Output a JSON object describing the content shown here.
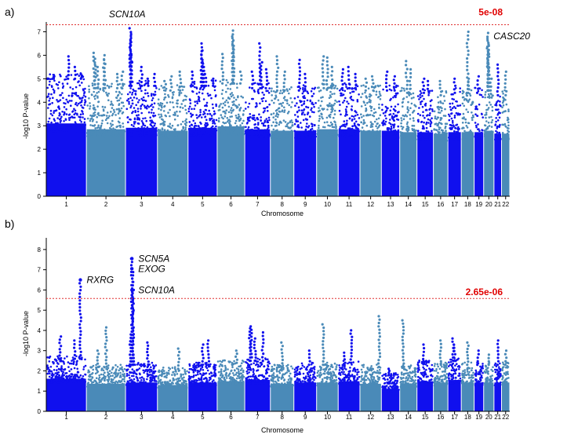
{
  "colors": {
    "dark": "#1010ee",
    "light": "#4a8ab8",
    "threshold": "#e03030",
    "threshold_text": "#e00000"
  },
  "chart_data": [
    {
      "type": "scatter",
      "panel": "a)",
      "xlabel": "Chromosome",
      "ylabel": "-log10 P-value",
      "ylim": [
        0,
        7.35
      ],
      "yticks": [
        0,
        1,
        2,
        3,
        4,
        5,
        6,
        7
      ],
      "categories": [
        "1",
        "2",
        "3",
        "4",
        "5",
        "6",
        "7",
        "8",
        "9",
        "10",
        "11",
        "12",
        "13",
        "14",
        "15",
        "16",
        "17",
        "18",
        "19",
        "20",
        "21",
        "22"
      ],
      "threshold": {
        "value": 7.3,
        "label": "5e-08"
      },
      "annotations": [
        {
          "label": "SCN10A",
          "chrom": "3",
          "y": 7.15
        },
        {
          "label": "CASC20",
          "chrom": "20",
          "y": 6.95
        }
      ],
      "series": [
        {
          "chrom": "1",
          "base": 5.0,
          "peaks": [
            [
              0.05,
              5.0
            ],
            [
              0.18,
              5.1
            ],
            [
              0.55,
              5.95
            ],
            [
              0.72,
              5.5
            ],
            [
              0.88,
              5.2
            ]
          ]
        },
        {
          "chrom": "2",
          "base": 4.6,
          "peaks": [
            [
              0.2,
              6.1
            ],
            [
              0.22,
              5.85
            ],
            [
              0.3,
              5.5
            ],
            [
              0.45,
              6.0
            ],
            [
              0.47,
              5.8
            ],
            [
              0.8,
              5.2
            ],
            [
              0.92,
              5.3
            ]
          ]
        },
        {
          "chrom": "3",
          "base": 4.7,
          "peaks": [
            [
              0.15,
              7.15
            ],
            [
              0.16,
              6.9
            ],
            [
              0.17,
              6.6
            ],
            [
              0.18,
              6.0
            ],
            [
              0.19,
              5.7
            ],
            [
              0.5,
              5.5
            ],
            [
              0.7,
              5.0
            ],
            [
              0.9,
              5.2
            ]
          ]
        },
        {
          "chrom": "4",
          "base": 4.5,
          "peaks": [
            [
              0.25,
              4.9
            ],
            [
              0.45,
              5.1
            ],
            [
              0.75,
              5.3
            ]
          ]
        },
        {
          "chrom": "5",
          "base": 4.7,
          "peaks": [
            [
              0.45,
              6.5
            ],
            [
              0.47,
              6.2
            ],
            [
              0.5,
              5.8
            ],
            [
              0.55,
              5.5
            ],
            [
              0.6,
              5.2
            ],
            [
              0.15,
              5.3
            ],
            [
              0.85,
              5.0
            ]
          ]
        },
        {
          "chrom": "6",
          "base": 4.8,
          "peaks": [
            [
              0.2,
              6.05
            ],
            [
              0.55,
              7.05
            ],
            [
              0.57,
              6.8
            ],
            [
              0.6,
              6.4
            ],
            [
              0.85,
              5.3
            ]
          ]
        },
        {
          "chrom": "7",
          "base": 4.6,
          "peaks": [
            [
              0.3,
              5.3
            ],
            [
              0.6,
              6.5
            ],
            [
              0.65,
              5.7
            ],
            [
              0.85,
              5.4
            ]
          ]
        },
        {
          "chrom": "8",
          "base": 4.5,
          "peaks": [
            [
              0.3,
              5.95
            ],
            [
              0.6,
              5.3
            ]
          ]
        },
        {
          "chrom": "9",
          "base": 4.5,
          "peaks": [
            [
              0.25,
              5.8
            ],
            [
              0.5,
              5.2
            ]
          ]
        },
        {
          "chrom": "10",
          "base": 4.6,
          "peaks": [
            [
              0.3,
              5.95
            ],
            [
              0.5,
              5.9
            ],
            [
              0.7,
              5.5
            ]
          ]
        },
        {
          "chrom": "11",
          "base": 4.6,
          "peaks": [
            [
              0.2,
              5.4
            ],
            [
              0.5,
              5.5
            ],
            [
              0.8,
              5.2
            ]
          ]
        },
        {
          "chrom": "12",
          "base": 4.5,
          "peaks": [
            [
              0.3,
              5.0
            ],
            [
              0.6,
              5.1
            ]
          ]
        },
        {
          "chrom": "13",
          "base": 4.5,
          "peaks": [
            [
              0.3,
              5.3
            ],
            [
              0.7,
              5.1
            ]
          ]
        },
        {
          "chrom": "14",
          "base": 4.4,
          "peaks": [
            [
              0.4,
              5.75
            ],
            [
              0.6,
              5.4
            ]
          ]
        },
        {
          "chrom": "15",
          "base": 4.4,
          "peaks": [
            [
              0.4,
              5.0
            ],
            [
              0.7,
              4.9
            ]
          ]
        },
        {
          "chrom": "16",
          "base": 4.3,
          "peaks": [
            [
              0.5,
              4.9
            ]
          ]
        },
        {
          "chrom": "17",
          "base": 4.4,
          "peaks": [
            [
              0.5,
              5.0
            ]
          ]
        },
        {
          "chrom": "18",
          "base": 4.4,
          "peaks": [
            [
              0.5,
              7.0
            ],
            [
              0.55,
              5.0
            ]
          ]
        },
        {
          "chrom": "19",
          "base": 4.4,
          "peaks": [
            [
              0.4,
              5.1
            ]
          ]
        },
        {
          "chrom": "20",
          "base": 4.5,
          "peaks": [
            [
              0.4,
              6.95
            ],
            [
              0.42,
              6.7
            ],
            [
              0.44,
              6.4
            ],
            [
              0.46,
              6.1
            ],
            [
              0.48,
              5.8
            ],
            [
              0.5,
              5.5
            ],
            [
              0.7,
              5.0
            ]
          ]
        },
        {
          "chrom": "21",
          "base": 4.3,
          "peaks": [
            [
              0.5,
              5.6
            ]
          ]
        },
        {
          "chrom": "22",
          "base": 4.3,
          "peaks": [
            [
              0.5,
              5.3
            ]
          ]
        }
      ]
    },
    {
      "type": "scatter",
      "panel": "b)",
      "xlabel": "Chromosome",
      "ylabel": "-log10 P-value",
      "ylim": [
        0,
        8.5
      ],
      "yticks": [
        0,
        1,
        2,
        3,
        4,
        5,
        6,
        7,
        8
      ],
      "categories": [
        "1",
        "2",
        "3",
        "4",
        "5",
        "6",
        "7",
        "8",
        "9",
        "10",
        "11",
        "12",
        "13",
        "14",
        "15",
        "16",
        "17",
        "18",
        "19",
        "20",
        "21",
        "22"
      ],
      "threshold": {
        "value": 5.58,
        "label": "2.65e-06"
      },
      "annotations": [
        {
          "label": "RXRG",
          "chrom": "1",
          "y": 6.5,
          "pos": 0.85
        },
        {
          "label": "SCN5A",
          "chrom": "3",
          "y": 7.55,
          "pos": 0.2
        },
        {
          "label": "EXOG",
          "chrom": "3",
          "y": 7.05,
          "pos": 0.2
        },
        {
          "label": "SCN10A",
          "chrom": "3",
          "y": 6.0,
          "pos": 0.2
        }
      ],
      "series": [
        {
          "chrom": "1",
          "base": 2.6,
          "peaks": [
            [
              0.35,
              3.7
            ],
            [
              0.7,
              3.5
            ],
            [
              0.85,
              6.5
            ]
          ]
        },
        {
          "chrom": "2",
          "base": 2.2,
          "peaks": [
            [
              0.5,
              4.15
            ],
            [
              0.3,
              3.0
            ]
          ]
        },
        {
          "chrom": "3",
          "base": 2.3,
          "peaks": [
            [
              0.2,
              7.55
            ],
            [
              0.22,
              7.05
            ],
            [
              0.24,
              6.0
            ],
            [
              0.15,
              3.8
            ],
            [
              0.7,
              3.4
            ]
          ]
        },
        {
          "chrom": "4",
          "base": 2.1,
          "peaks": [
            [
              0.7,
              3.1
            ]
          ]
        },
        {
          "chrom": "5",
          "base": 2.3,
          "peaks": [
            [
              0.5,
              3.3
            ],
            [
              0.7,
              3.5
            ]
          ]
        },
        {
          "chrom": "6",
          "base": 2.4,
          "peaks": [
            [
              0.7,
              3.0
            ]
          ]
        },
        {
          "chrom": "7",
          "base": 2.5,
          "peaks": [
            [
              0.2,
              4.1
            ],
            [
              0.25,
              4.2
            ],
            [
              0.4,
              3.6
            ],
            [
              0.7,
              3.9
            ]
          ]
        },
        {
          "chrom": "8",
          "base": 2.2,
          "peaks": [
            [
              0.5,
              3.4
            ]
          ]
        },
        {
          "chrom": "9",
          "base": 2.3,
          "peaks": [
            [
              0.7,
              3.0
            ]
          ]
        },
        {
          "chrom": "10",
          "base": 2.3,
          "peaks": [
            [
              0.3,
              4.3
            ]
          ]
        },
        {
          "chrom": "11",
          "base": 2.4,
          "peaks": [
            [
              0.6,
              4.0
            ],
            [
              0.3,
              2.9
            ]
          ]
        },
        {
          "chrom": "12",
          "base": 2.2,
          "peaks": [
            [
              0.9,
              4.7
            ]
          ]
        },
        {
          "chrom": "13",
          "base": 1.8,
          "peaks": [
            [
              0.4,
              2.1
            ]
          ]
        },
        {
          "chrom": "14",
          "base": 2.2,
          "peaks": [
            [
              0.2,
              4.5
            ]
          ]
        },
        {
          "chrom": "15",
          "base": 2.4,
          "peaks": [
            [
              0.4,
              3.3
            ]
          ]
        },
        {
          "chrom": "16",
          "base": 2.3,
          "peaks": [
            [
              0.5,
              3.5
            ]
          ]
        },
        {
          "chrom": "17",
          "base": 2.5,
          "peaks": [
            [
              0.4,
              3.6
            ],
            [
              0.5,
              3.3
            ]
          ]
        },
        {
          "chrom": "18",
          "base": 2.3,
          "peaks": [
            [
              0.5,
              3.4
            ]
          ]
        },
        {
          "chrom": "19",
          "base": 2.3,
          "peaks": [
            [
              0.4,
              3.0
            ]
          ]
        },
        {
          "chrom": "20",
          "base": 2.3,
          "peaks": [
            [
              0.5,
              2.8
            ]
          ]
        },
        {
          "chrom": "21",
          "base": 2.3,
          "peaks": [
            [
              0.5,
              3.5
            ]
          ]
        },
        {
          "chrom": "22",
          "base": 2.3,
          "peaks": [
            [
              0.5,
              3.0
            ]
          ]
        }
      ]
    }
  ]
}
